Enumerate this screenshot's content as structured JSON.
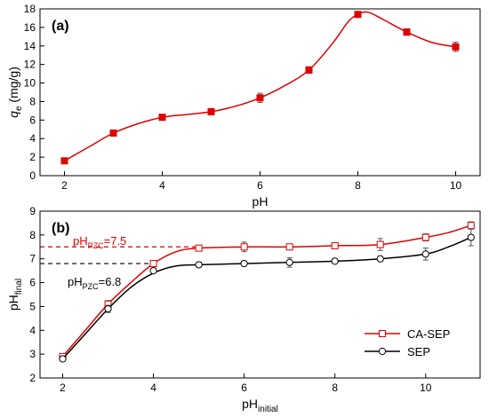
{
  "chart_data": [
    {
      "type": "line",
      "panel_label": "(a)",
      "xlabel": "pH",
      "ylabel_main": "q",
      "ylabel_sub": "e",
      "ylabel_unit": " (mg/g)",
      "xlim": [
        1.5,
        10.5
      ],
      "ylim": [
        0,
        18
      ],
      "xticks": [
        2,
        4,
        6,
        8,
        10
      ],
      "yticks": [
        0,
        2,
        4,
        6,
        8,
        10,
        12,
        14,
        16,
        18
      ],
      "colors": {
        "series": "#e00000",
        "axis": "#000000"
      },
      "series": [
        {
          "x": [
            2,
            3,
            4,
            5,
            6,
            7,
            8,
            9,
            10
          ],
          "y": [
            1.6,
            4.6,
            6.3,
            6.9,
            8.4,
            11.4,
            17.4,
            15.5,
            13.9
          ],
          "err": [
            0.15,
            0.3,
            0.25,
            0.35,
            0.5,
            0.35,
            0.3,
            0.35,
            0.5
          ],
          "smooth": [
            [
              2,
              1.6
            ],
            [
              2.5,
              3.1
            ],
            [
              3,
              4.6
            ],
            [
              3.5,
              5.6
            ],
            [
              4,
              6.3
            ],
            [
              4.5,
              6.6
            ],
            [
              5,
              6.9
            ],
            [
              5.5,
              7.5
            ],
            [
              6,
              8.4
            ],
            [
              6.5,
              9.7
            ],
            [
              7,
              11.4
            ],
            [
              7.5,
              14.4
            ],
            [
              7.8,
              16.6
            ],
            [
              8,
              17.4
            ],
            [
              8.2,
              17.65
            ],
            [
              8.5,
              16.9
            ],
            [
              9,
              15.5
            ],
            [
              9.5,
              14.4
            ],
            [
              10,
              13.9
            ]
          ]
        }
      ]
    },
    {
      "type": "line",
      "panel_label": "(b)",
      "xlabel_main": "pH",
      "xlabel_sub": "initial",
      "ylabel_main": "pH",
      "ylabel_sub": "final",
      "xlim": [
        1.5,
        11.2
      ],
      "ylim": [
        2,
        9
      ],
      "xticks": [
        2,
        4,
        6,
        8,
        10
      ],
      "yticks": [
        2,
        3,
        4,
        5,
        6,
        7,
        8,
        9
      ],
      "annotations": [
        {
          "main": "pH",
          "sub": "PZC",
          "tail": "=7.5",
          "y": 7.5,
          "color": "#e00000"
        },
        {
          "main": "pH",
          "sub": "PZC",
          "tail": "=6.8",
          "y": 6.8,
          "color": "#000000"
        }
      ],
      "legend": {
        "position": "bottom-right"
      },
      "series": [
        {
          "name": "CA-SEP",
          "color": "#e00000",
          "marker": "square",
          "x": [
            2,
            3,
            4,
            5,
            6,
            7,
            8,
            9,
            10,
            11
          ],
          "y": [
            2.9,
            5.1,
            6.8,
            7.45,
            7.5,
            7.5,
            7.55,
            7.6,
            7.9,
            8.4
          ],
          "err": [
            0.1,
            0.15,
            0.1,
            0.1,
            0.2,
            0.1,
            0.1,
            0.25,
            0.15,
            0.15
          ],
          "smooth": [
            [
              2,
              2.9
            ],
            [
              2.5,
              4.0
            ],
            [
              3,
              5.1
            ],
            [
              3.5,
              6.0
            ],
            [
              4,
              6.8
            ],
            [
              4.5,
              7.3
            ],
            [
              5,
              7.45
            ],
            [
              6,
              7.5
            ],
            [
              7,
              7.5
            ],
            [
              8,
              7.55
            ],
            [
              9,
              7.6
            ],
            [
              10,
              7.9
            ],
            [
              10.5,
              8.1
            ],
            [
              11,
              8.4
            ]
          ]
        },
        {
          "name": "SEP",
          "color": "#000000",
          "marker": "circle",
          "x": [
            2,
            3,
            4,
            5,
            6,
            7,
            8,
            9,
            10,
            11
          ],
          "y": [
            2.8,
            4.9,
            6.5,
            6.75,
            6.8,
            6.85,
            6.9,
            7.0,
            7.2,
            7.9
          ],
          "err": [
            0.1,
            0.15,
            0.1,
            0.1,
            0.1,
            0.2,
            0.1,
            0.1,
            0.25,
            0.35
          ],
          "smooth": [
            [
              2,
              2.8
            ],
            [
              2.5,
              3.85
            ],
            [
              3,
              4.9
            ],
            [
              3.5,
              5.8
            ],
            [
              4,
              6.4
            ],
            [
              4.5,
              6.7
            ],
            [
              5,
              6.75
            ],
            [
              6,
              6.8
            ],
            [
              7,
              6.85
            ],
            [
              8,
              6.9
            ],
            [
              9,
              7.0
            ],
            [
              10,
              7.2
            ],
            [
              10.5,
              7.5
            ],
            [
              11,
              7.9
            ]
          ]
        }
      ]
    }
  ]
}
